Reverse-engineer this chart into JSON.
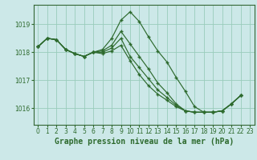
{
  "background_color": "#cce8e8",
  "grid_color": "#99ccbb",
  "line_color": "#2d6a2d",
  "marker_color": "#2d6a2d",
  "xlabel": "Graphe pression niveau de la mer (hPa)",
  "xlabel_fontsize": 7,
  "ylabel_ticks": [
    1016,
    1017,
    1018,
    1019
  ],
  "xticks": [
    0,
    1,
    2,
    3,
    4,
    5,
    6,
    7,
    8,
    9,
    10,
    11,
    12,
    13,
    14,
    15,
    16,
    17,
    18,
    19,
    20,
    21,
    22,
    23
  ],
  "xlim": [
    -0.5,
    23.5
  ],
  "ylim": [
    1015.4,
    1019.7
  ],
  "series": [
    {
      "x": [
        0,
        1,
        2,
        3,
        4,
        5,
        6,
        7,
        8,
        9,
        10,
        11,
        12,
        13,
        14,
        15,
        16,
        17,
        18,
        19,
        20,
        21,
        22
      ],
      "y": [
        1018.2,
        1018.5,
        1018.45,
        1018.1,
        1017.95,
        1017.85,
        1018.0,
        1018.1,
        1018.5,
        1019.15,
        1019.45,
        1019.1,
        1018.55,
        1018.05,
        1017.65,
        1017.1,
        1016.6,
        1016.05,
        1015.85,
        1015.85,
        1015.9,
        1016.15,
        1016.45
      ]
    },
    {
      "x": [
        0,
        1,
        2,
        3,
        4,
        5,
        6,
        7,
        8,
        9,
        10,
        11,
        12,
        13,
        14,
        15,
        16,
        17,
        18,
        19,
        20,
        21,
        22
      ],
      "y": [
        1018.2,
        1018.5,
        1018.45,
        1018.1,
        1017.95,
        1017.85,
        1018.0,
        1018.05,
        1018.25,
        1018.75,
        1018.3,
        1017.85,
        1017.4,
        1016.9,
        1016.55,
        1016.15,
        1015.9,
        1015.85,
        1015.85,
        1015.85,
        1015.9,
        1016.15,
        1016.45
      ]
    },
    {
      "x": [
        0,
        1,
        2,
        3,
        4,
        5,
        6,
        7,
        8,
        9,
        10,
        11,
        12,
        13,
        14,
        15,
        16,
        17,
        18,
        19,
        20,
        21,
        22
      ],
      "y": [
        1018.2,
        1018.5,
        1018.45,
        1018.1,
        1017.95,
        1017.85,
        1018.0,
        1018.0,
        1018.15,
        1018.5,
        1017.85,
        1017.45,
        1017.05,
        1016.65,
        1016.38,
        1016.1,
        1015.9,
        1015.85,
        1015.85,
        1015.85,
        1015.9,
        1016.15,
        1016.45
      ]
    },
    {
      "x": [
        0,
        1,
        2,
        3,
        4,
        5,
        6,
        7,
        8,
        9,
        10,
        11,
        12,
        13,
        14,
        15,
        16,
        17,
        18,
        19,
        20,
        21,
        22
      ],
      "y": [
        1018.2,
        1018.5,
        1018.45,
        1018.1,
        1017.95,
        1017.85,
        1018.0,
        1017.95,
        1018.05,
        1018.25,
        1017.7,
        1017.2,
        1016.8,
        1016.5,
        1016.28,
        1016.05,
        1015.9,
        1015.85,
        1015.85,
        1015.85,
        1015.9,
        1016.15,
        1016.45
      ]
    }
  ]
}
